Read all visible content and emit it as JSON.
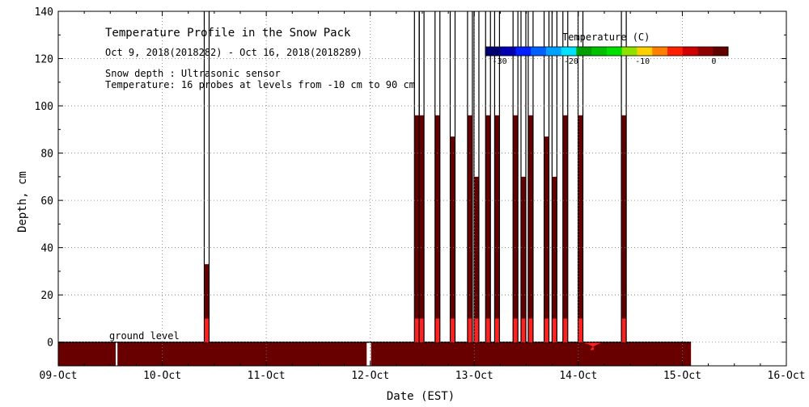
{
  "chart_data": {
    "type": "heatmap",
    "title": "Temperature Profile in the Snow Pack",
    "subtitle": "Oct  9, 2018(2018282) - Oct 16, 2018(2018289)",
    "notes": [
      "Snow depth : Ultrasonic sensor",
      "Temperature: 16 probes at levels from -10 cm to 90 cm"
    ],
    "xlabel": "Date (EST)",
    "ylabel": "Depth, cm",
    "ground_label": "ground level",
    "x_ticks": [
      "09-Oct",
      "10-Oct",
      "11-Oct",
      "12-Oct",
      "13-Oct",
      "14-Oct",
      "15-Oct",
      "16-Oct"
    ],
    "x_range": [
      "2018-10-09",
      "2018-10-16"
    ],
    "ylim": [
      -10,
      140
    ],
    "y_ticks": [
      0,
      20,
      40,
      60,
      80,
      100,
      120,
      140
    ],
    "grid": true,
    "colorbar": {
      "title": "Temperature (C)",
      "tick_labels": [
        "-30",
        "-20",
        "-10",
        "0"
      ],
      "tick_values": [
        -30,
        -20,
        -10,
        0
      ],
      "range": [
        -32,
        2
      ],
      "colors": [
        "#000070",
        "#0000b0",
        "#0020ff",
        "#0060ff",
        "#00a0ff",
        "#00e0ff",
        "#00a000",
        "#00c000",
        "#00e000",
        "#90e000",
        "#ffd000",
        "#ff8000",
        "#ff2000",
        "#d00000",
        "#900000",
        "#600000"
      ]
    },
    "colors": {
      "warm": "#660000",
      "ground": "#680000",
      "probe_hot": "#ff2020",
      "gap": "#ffffff"
    },
    "ground_layer": {
      "depth_range": [
        -10,
        0
      ],
      "gaps": [
        [
          "2018-10-09T13:15",
          "2018-10-09T13:40"
        ],
        [
          "2018-10-11T23:10",
          "2018-10-12T00:10"
        ]
      ],
      "end": "2018-10-15T02:00",
      "warm_patch": [
        "2018-10-14T00:00",
        "2018-10-14T06:00"
      ]
    },
    "snow_depth_spikes": [
      {
        "t": "2018-10-10T10:15",
        "depth": 140,
        "fill_to": 33
      },
      {
        "t": "2018-10-12T10:45",
        "depth": 140,
        "fill_to": 96
      },
      {
        "t": "2018-10-12T11:50",
        "depth": 140,
        "fill_to": 96
      },
      {
        "t": "2018-10-12T15:30",
        "depth": 140,
        "fill_to": 96
      },
      {
        "t": "2018-10-12T19:00",
        "depth": 140,
        "fill_to": 87
      },
      {
        "t": "2018-10-12T23:00",
        "depth": 140,
        "fill_to": 96
      },
      {
        "t": "2018-10-13T00:30",
        "depth": 140,
        "fill_to": 70
      },
      {
        "t": "2018-10-13T03:10",
        "depth": 140,
        "fill_to": 96
      },
      {
        "t": "2018-10-13T05:15",
        "depth": 140,
        "fill_to": 96
      },
      {
        "t": "2018-10-13T09:30",
        "depth": 140,
        "fill_to": 96
      },
      {
        "t": "2018-10-13T11:20",
        "depth": 140,
        "fill_to": 70
      },
      {
        "t": "2018-10-13T13:00",
        "depth": 140,
        "fill_to": 96
      },
      {
        "t": "2018-10-13T16:40",
        "depth": 140,
        "fill_to": 87
      },
      {
        "t": "2018-10-13T18:30",
        "depth": 140,
        "fill_to": 70
      },
      {
        "t": "2018-10-13T21:00",
        "depth": 140,
        "fill_to": 96
      },
      {
        "t": "2018-10-14T00:30",
        "depth": 140,
        "fill_to": 96
      },
      {
        "t": "2018-10-14T10:30",
        "depth": 140,
        "fill_to": 96
      }
    ]
  }
}
